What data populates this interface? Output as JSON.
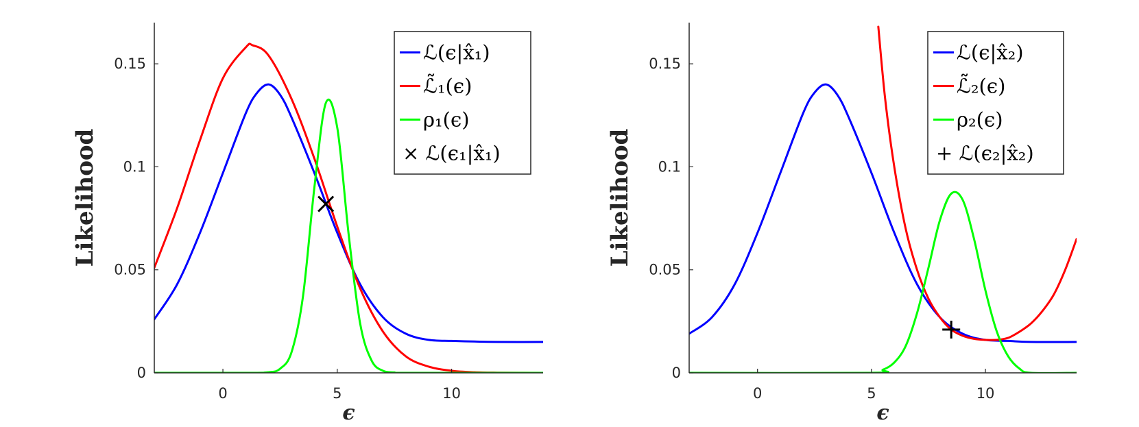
{
  "chart_data": [
    {
      "type": "line",
      "title": "",
      "xlabel": "ϵ",
      "ylabel": "Likelihood",
      "xlim": [
        -3,
        14
      ],
      "ylim": [
        0,
        0.17
      ],
      "xticks": [
        0,
        5,
        10
      ],
      "yticks": [
        0,
        0.05,
        0.1,
        0.15
      ],
      "xtick_labels": [
        "0",
        "5",
        "10"
      ],
      "ytick_labels": [
        "0",
        "0.05",
        "0.1",
        "0.15"
      ],
      "grid": false,
      "legend_position": "top-right",
      "series": [
        {
          "name": "ℒ(ϵ|x̂₁)",
          "color": "#0000ff",
          "x": [
            -3,
            -2,
            -1,
            0,
            1,
            1.5,
            2,
            2.5,
            3,
            4,
            5,
            6,
            7,
            8,
            9,
            10,
            11,
            12,
            14
          ],
          "y": [
            0.026,
            0.043,
            0.068,
            0.097,
            0.126,
            0.136,
            0.14,
            0.135,
            0.124,
            0.097,
            0.068,
            0.043,
            0.027,
            0.019,
            0.016,
            0.0155,
            0.0152,
            0.015,
            0.015
          ]
        },
        {
          "name": "ℒ̃₁(ϵ)",
          "color": "#ff0000",
          "x": [
            -3,
            -2,
            -1,
            0,
            1,
            1.3,
            2,
            3,
            4,
            5,
            6,
            7,
            8,
            9,
            10,
            11,
            12,
            14
          ],
          "y": [
            0.051,
            0.08,
            0.113,
            0.143,
            0.158,
            0.159,
            0.154,
            0.133,
            0.104,
            0.071,
            0.041,
            0.02,
            0.008,
            0.003,
            0.001,
            0.0003,
            0.0001,
            0
          ]
        },
        {
          "name": "ρ₁(ϵ)",
          "color": "#00ff00",
          "x": [
            -3,
            1,
            2,
            2.5,
            3,
            3.5,
            4,
            4.5,
            5,
            5.5,
            6,
            6.5,
            7,
            7.5,
            8,
            14
          ],
          "y": [
            0,
            0,
            0.0003,
            0.002,
            0.01,
            0.037,
            0.09,
            0.131,
            0.119,
            0.067,
            0.024,
            0.006,
            0.001,
            0.0002,
            0,
            0
          ]
        }
      ],
      "markers": [
        {
          "name": "× ℒ(ϵ₁|x̂₁)",
          "symbol": "x",
          "x": 4.5,
          "y": 0.082
        }
      ]
    },
    {
      "type": "line",
      "title": "",
      "xlabel": "ϵ",
      "ylabel": "Likelihood",
      "xlim": [
        -3,
        14
      ],
      "ylim": [
        0,
        0.17
      ],
      "xticks": [
        0,
        5,
        10
      ],
      "yticks": [
        0,
        0.05,
        0.1,
        0.15
      ],
      "xtick_labels": [
        "0",
        "5",
        "10"
      ],
      "ytick_labels": [
        "0",
        "0.05",
        "0.1",
        "0.15"
      ],
      "grid": false,
      "legend_position": "top-right",
      "series": [
        {
          "name": "ℒ(ϵ|x̂₂)",
          "color": "#0000ff",
          "x": [
            -3,
            -2,
            -1,
            0,
            1,
            2,
            2.5,
            3,
            3.5,
            4,
            5,
            6,
            7,
            8,
            9,
            10,
            11,
            12,
            14
          ],
          "y": [
            0.019,
            0.027,
            0.043,
            0.068,
            0.097,
            0.126,
            0.136,
            0.14,
            0.135,
            0.124,
            0.097,
            0.068,
            0.043,
            0.027,
            0.019,
            0.016,
            0.0155,
            0.015,
            0.015
          ]
        },
        {
          "name": "ℒ̃₂(ϵ)",
          "color": "#ff0000",
          "x": [
            5.3,
            5.6,
            6,
            6.5,
            7,
            7.5,
            8,
            8.5,
            9,
            9.5,
            10,
            10.5,
            11,
            11.5,
            12,
            12.5,
            13,
            13.5,
            14
          ],
          "y": [
            0.168,
            0.133,
            0.1,
            0.07,
            0.05,
            0.036,
            0.027,
            0.021,
            0.018,
            0.0165,
            0.016,
            0.016,
            0.017,
            0.02,
            0.024,
            0.03,
            0.038,
            0.05,
            0.065
          ]
        },
        {
          "name": "ρ₂(ϵ)",
          "color": "#00ff00",
          "x": [
            -3,
            5,
            5.5,
            6,
            6.5,
            7,
            7.5,
            8,
            8.5,
            9,
            9.5,
            10,
            10.5,
            11,
            11.5,
            12,
            14
          ],
          "y": [
            0,
            0,
            0.0015,
            0.005,
            0.013,
            0.029,
            0.051,
            0.074,
            0.087,
            0.084,
            0.065,
            0.04,
            0.02,
            0.008,
            0.002,
            0,
            0
          ]
        }
      ],
      "markers": [
        {
          "name": "+ ℒ(ϵ₂|x̂₂)",
          "symbol": "+",
          "x": 8.5,
          "y": 0.021
        }
      ]
    }
  ]
}
